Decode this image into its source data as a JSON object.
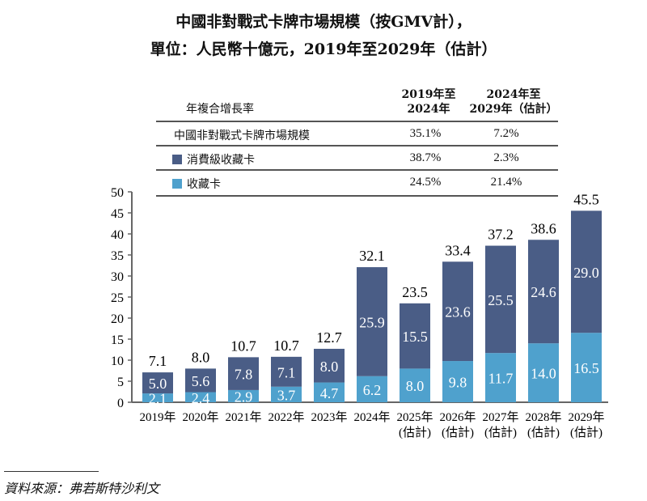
{
  "title_line1": "中國非對戰式卡牌市場規模（按GMV計），",
  "title_line2": "單位：人民幣十億元，2019年至2029年（估計）",
  "table": {
    "header_label": "年複合增長率",
    "col1": [
      "2019年至",
      "2024年"
    ],
    "col2": [
      "2024年至",
      "2029年（估計）"
    ],
    "rows": [
      {
        "label": "中國非對戰式卡牌市場規模",
        "v1": "35.1%",
        "v2": "7.2%"
      },
      {
        "label": "消費級收藏卡",
        "v1": "38.7%",
        "v2": "2.3%"
      },
      {
        "label": "收藏卡",
        "v1": "24.5%",
        "v2": "21.4%"
      }
    ]
  },
  "chart_data": {
    "type": "bar",
    "stacked": true,
    "categories": [
      [
        "2019年"
      ],
      [
        "2020年"
      ],
      [
        "2021年"
      ],
      [
        "2022年"
      ],
      [
        "2023年"
      ],
      [
        "2024年"
      ],
      [
        "2025年",
        "(估計)"
      ],
      [
        "2026年",
        "(估計)"
      ],
      [
        "2027年",
        "(估計)"
      ],
      [
        "2028年",
        "(估計)"
      ],
      [
        "2029年",
        "(估計)"
      ]
    ],
    "series": [
      {
        "name": "收藏卡",
        "color": "#4fa1cd",
        "values": [
          2.1,
          2.4,
          2.9,
          3.7,
          4.7,
          6.2,
          8.0,
          9.8,
          11.7,
          14.0,
          16.5
        ]
      },
      {
        "name": "消費級收藏卡",
        "color": "#4a5d86",
        "values": [
          5.0,
          5.6,
          7.8,
          7.1,
          8.0,
          25.9,
          15.5,
          23.6,
          25.5,
          24.6,
          29.0
        ]
      }
    ],
    "totals": [
      7.1,
      8.0,
      10.7,
      10.7,
      12.7,
      32.1,
      23.5,
      33.4,
      37.2,
      38.6,
      45.5
    ],
    "ylim": [
      0,
      50
    ],
    "yticks": [
      0,
      5,
      10,
      15,
      20,
      25,
      30,
      35,
      40,
      45,
      50
    ],
    "grid": false
  },
  "source": "資料來源：弗若斯特沙利文"
}
